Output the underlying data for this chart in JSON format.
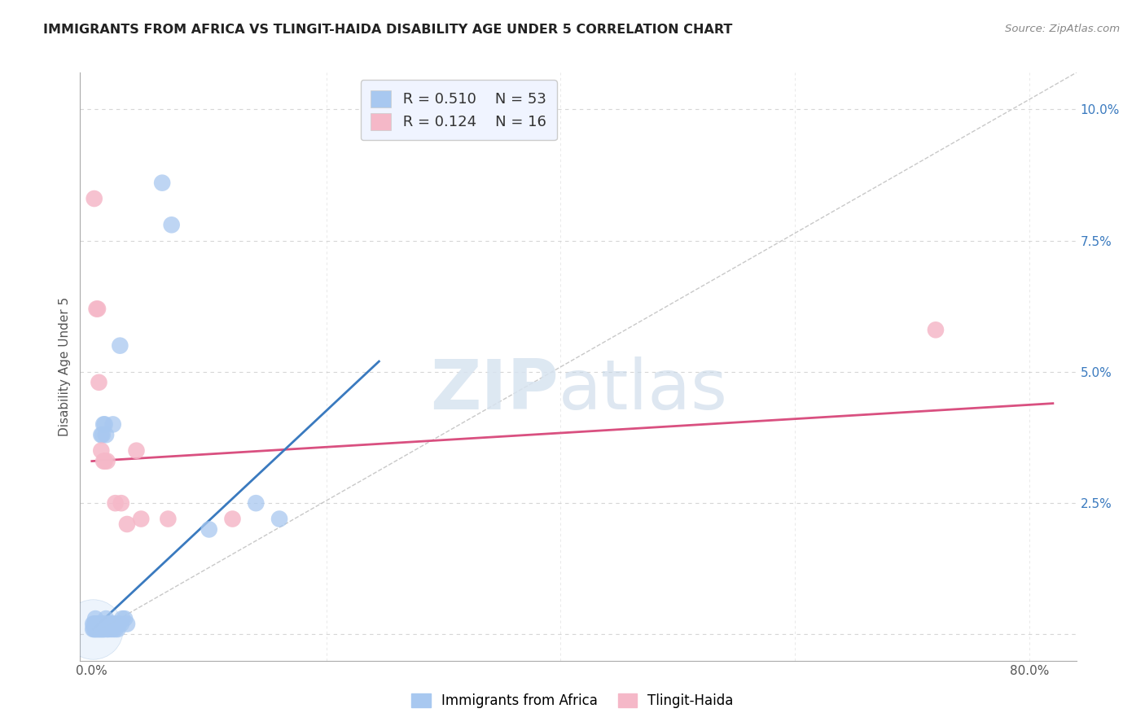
{
  "title": "IMMIGRANTS FROM AFRICA VS TLINGIT-HAIDA DISABILITY AGE UNDER 5 CORRELATION CHART",
  "source": "Source: ZipAtlas.com",
  "ylabel": "Disability Age Under 5",
  "x_ticks": [
    0.0,
    0.2,
    0.4,
    0.6,
    0.8
  ],
  "y_ticks": [
    0.0,
    0.025,
    0.05,
    0.075,
    0.1
  ],
  "xlim": [
    -0.01,
    0.84
  ],
  "ylim": [
    -0.005,
    0.107
  ],
  "background_color": "#ffffff",
  "grid_color": "#cccccc",
  "watermark_zip": "ZIP",
  "watermark_atlas": "atlas",
  "legend_R1": "R = 0.510",
  "legend_N1": "N = 53",
  "legend_R2": "R = 0.124",
  "legend_N2": "N = 16",
  "blue_color": "#a8c8f0",
  "blue_line_color": "#3a7abf",
  "pink_color": "#f5b8c8",
  "pink_line_color": "#d95080",
  "legend_bg": "#f0f4ff",
  "blue_scatter": [
    [
      0.001,
      0.001
    ],
    [
      0.001,
      0.002
    ],
    [
      0.002,
      0.001
    ],
    [
      0.002,
      0.002
    ],
    [
      0.003,
      0.001
    ],
    [
      0.003,
      0.002
    ],
    [
      0.003,
      0.003
    ],
    [
      0.004,
      0.001
    ],
    [
      0.004,
      0.002
    ],
    [
      0.005,
      0.001
    ],
    [
      0.005,
      0.002
    ],
    [
      0.006,
      0.001
    ],
    [
      0.006,
      0.002
    ],
    [
      0.007,
      0.001
    ],
    [
      0.007,
      0.002
    ],
    [
      0.008,
      0.001
    ],
    [
      0.008,
      0.002
    ],
    [
      0.009,
      0.001
    ],
    [
      0.009,
      0.002
    ],
    [
      0.01,
      0.001
    ],
    [
      0.01,
      0.002
    ],
    [
      0.011,
      0.001
    ],
    [
      0.012,
      0.002
    ],
    [
      0.012,
      0.003
    ],
    [
      0.013,
      0.001
    ],
    [
      0.014,
      0.001
    ],
    [
      0.014,
      0.002
    ],
    [
      0.015,
      0.002
    ],
    [
      0.016,
      0.001
    ],
    [
      0.016,
      0.002
    ],
    [
      0.017,
      0.002
    ],
    [
      0.018,
      0.001
    ],
    [
      0.019,
      0.002
    ],
    [
      0.02,
      0.001
    ],
    [
      0.021,
      0.002
    ],
    [
      0.022,
      0.001
    ],
    [
      0.023,
      0.002
    ],
    [
      0.025,
      0.002
    ],
    [
      0.026,
      0.003
    ],
    [
      0.028,
      0.003
    ],
    [
      0.03,
      0.002
    ],
    [
      0.008,
      0.038
    ],
    [
      0.009,
      0.038
    ],
    [
      0.01,
      0.04
    ],
    [
      0.011,
      0.04
    ],
    [
      0.012,
      0.038
    ],
    [
      0.018,
      0.04
    ],
    [
      0.024,
      0.055
    ],
    [
      0.06,
      0.086
    ],
    [
      0.068,
      0.078
    ],
    [
      0.1,
      0.02
    ],
    [
      0.14,
      0.025
    ],
    [
      0.16,
      0.022
    ]
  ],
  "pink_scatter": [
    [
      0.002,
      0.083
    ],
    [
      0.004,
      0.062
    ],
    [
      0.005,
      0.062
    ],
    [
      0.006,
      0.048
    ],
    [
      0.008,
      0.035
    ],
    [
      0.01,
      0.033
    ],
    [
      0.011,
      0.033
    ],
    [
      0.013,
      0.033
    ],
    [
      0.02,
      0.025
    ],
    [
      0.025,
      0.025
    ],
    [
      0.03,
      0.021
    ],
    [
      0.038,
      0.035
    ],
    [
      0.042,
      0.022
    ],
    [
      0.065,
      0.022
    ],
    [
      0.12,
      0.022
    ],
    [
      0.72,
      0.058
    ]
  ],
  "blue_line_x": [
    0.001,
    0.245
  ],
  "blue_line_y": [
    0.001,
    0.052
  ],
  "pink_line_x": [
    0.0,
    0.82
  ],
  "pink_line_y": [
    0.033,
    0.044
  ],
  "diag_line_x": [
    0.0,
    0.84
  ],
  "diag_line_y": [
    0.0,
    0.107
  ]
}
